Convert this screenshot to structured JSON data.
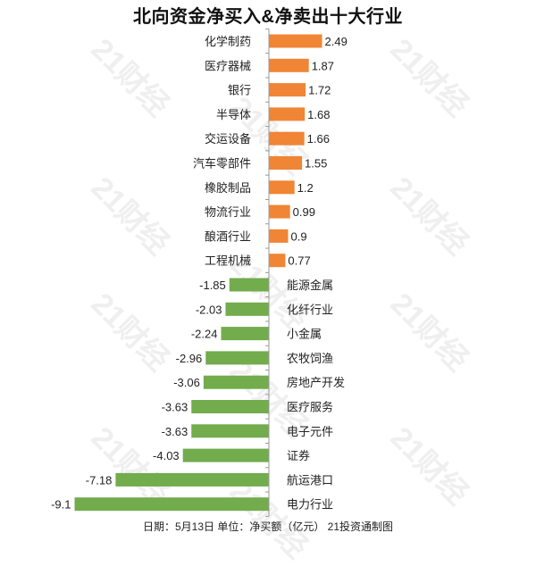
{
  "title": "北向资金净买入&净卖出十大行业",
  "footer": "日期：5月13日 单位：净买额（亿元） 21投资通制图",
  "watermark": "21财经",
  "colors": {
    "positive": "#F08535",
    "negative": "#72AC4D",
    "axis": "#9a9a9a",
    "text": "#222222"
  },
  "chart_data": {
    "type": "bar",
    "orientation": "horizontal",
    "categories": [
      "化学制药",
      "医疗器械",
      "银行",
      "半导体",
      "交运设备",
      "汽车零部件",
      "橡胶制品",
      "物流行业",
      "酿酒行业",
      "工程机械",
      "能源金属",
      "化纤行业",
      "小金属",
      "农牧饲渔",
      "房地产开发",
      "医疗服务",
      "电子元件",
      "证券",
      "航运港口",
      "电力行业"
    ],
    "values": [
      2.49,
      1.87,
      1.72,
      1.68,
      1.66,
      1.55,
      1.2,
      0.99,
      0.9,
      0.77,
      -1.85,
      -2.03,
      -2.24,
      -2.96,
      -3.06,
      -3.63,
      -3.63,
      -4.03,
      -7.18,
      -9.1
    ],
    "value_labels": [
      "2.49",
      "1.87",
      "1.72",
      "1.68",
      "1.66",
      "1.55",
      "1.2",
      "0.99",
      "0.9",
      "0.77",
      "-1.85",
      "-2.03",
      "-2.24",
      "-2.96",
      "-3.06",
      "-3.63",
      "-3.63",
      "-4.03",
      "-7.18",
      "-9.1"
    ],
    "xlim": [
      -9.1,
      2.49
    ],
    "grid": false,
    "legend": false
  }
}
